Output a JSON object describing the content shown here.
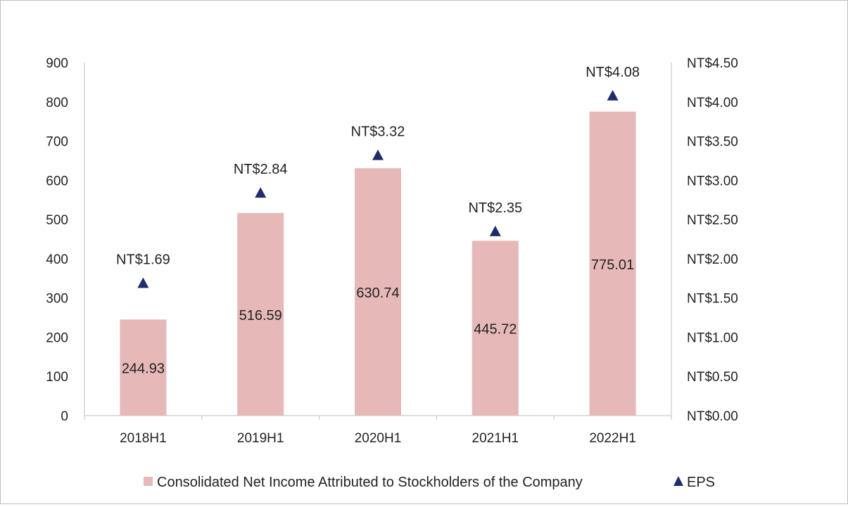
{
  "chart_data": {
    "type": "bar",
    "categories": [
      "2018H1",
      "2019H1",
      "2020H1",
      "2021H1",
      "2022H1"
    ],
    "series": [
      {
        "name": "Consolidated Net Income Attributed to Stockholders of the Company",
        "chart": "bar",
        "axis": "left",
        "values": [
          244.93,
          516.59,
          630.74,
          445.72,
          775.01
        ],
        "labels": [
          "244.93",
          "516.59",
          "630.74",
          "445.72",
          "775.01"
        ],
        "color": "#e6b9b8"
      },
      {
        "name": "EPS",
        "chart": "scatter",
        "marker": "triangle",
        "axis": "right",
        "values": [
          1.69,
          2.84,
          3.32,
          2.35,
          4.08
        ],
        "labels": [
          "NT$1.69",
          "NT$2.84",
          "NT$3.32",
          "NT$2.35",
          "NT$4.08"
        ],
        "color": "#1f2d6b"
      }
    ],
    "y_left": {
      "lim": [
        0,
        900
      ],
      "ticks": [
        "0",
        "100",
        "200",
        "300",
        "400",
        "500",
        "600",
        "700",
        "800",
        "900"
      ]
    },
    "y_right": {
      "lim": [
        0,
        4.5
      ],
      "ticks": [
        "NT$0.00",
        "NT$0.50",
        "NT$1.00",
        "NT$1.50",
        "NT$2.00",
        "NT$2.50",
        "NT$3.00",
        "NT$3.50",
        "NT$4.00",
        "NT$4.50"
      ]
    },
    "grid": false,
    "legend": "bottom"
  }
}
